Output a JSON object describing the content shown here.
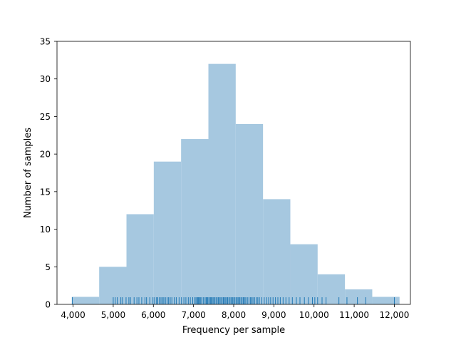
{
  "chart_data": {
    "type": "histogram",
    "title": "",
    "xlabel": "Frequency per sample",
    "ylabel": "Number of samples",
    "xlim": [
      3600,
      12400
    ],
    "ylim": [
      0,
      35
    ],
    "grid": false,
    "bar_color": "#a6c8e0",
    "rug_color": "#1f77b4",
    "x_ticks": [
      {
        "value": 4000,
        "label": "4,000"
      },
      {
        "value": 5000,
        "label": "5,000"
      },
      {
        "value": 6000,
        "label": "6,000"
      },
      {
        "value": 7000,
        "label": "7,000"
      },
      {
        "value": 8000,
        "label": "8,000"
      },
      {
        "value": 9000,
        "label": "9,000"
      },
      {
        "value": 10000,
        "label": "10,000"
      },
      {
        "value": 11000,
        "label": "11,000"
      },
      {
        "value": 12000,
        "label": "12,000"
      }
    ],
    "y_ticks": [
      {
        "value": 0,
        "label": "0"
      },
      {
        "value": 5,
        "label": "5"
      },
      {
        "value": 10,
        "label": "10"
      },
      {
        "value": 15,
        "label": "15"
      },
      {
        "value": 20,
        "label": "20"
      },
      {
        "value": 25,
        "label": "25"
      },
      {
        "value": 30,
        "label": "30"
      },
      {
        "value": 35,
        "label": "35"
      }
    ],
    "bins": [
      {
        "start": 3970,
        "end": 4650,
        "count": 1
      },
      {
        "start": 4650,
        "end": 5330,
        "count": 5
      },
      {
        "start": 5330,
        "end": 6010,
        "count": 12
      },
      {
        "start": 6010,
        "end": 6690,
        "count": 19
      },
      {
        "start": 6690,
        "end": 7370,
        "count": 22
      },
      {
        "start": 7370,
        "end": 8050,
        "count": 32
      },
      {
        "start": 8050,
        "end": 8730,
        "count": 24
      },
      {
        "start": 8730,
        "end": 9410,
        "count": 14
      },
      {
        "start": 9410,
        "end": 10090,
        "count": 8
      },
      {
        "start": 10090,
        "end": 10770,
        "count": 4
      },
      {
        "start": 10770,
        "end": 11450,
        "count": 2
      },
      {
        "start": 11450,
        "end": 12130,
        "count": 1
      }
    ],
    "rug": [
      3980,
      5000,
      5050,
      5100,
      5190,
      5230,
      5320,
      5390,
      5430,
      5520,
      5590,
      5640,
      5710,
      5790,
      5830,
      5910,
      5990,
      6030,
      6080,
      6110,
      6150,
      6190,
      6230,
      6260,
      6300,
      6340,
      6380,
      6420,
      6460,
      6520,
      6570,
      6640,
      6700,
      6760,
      6810,
      6870,
      6920,
      6980,
      7030,
      7060,
      7090,
      7110,
      7130,
      7150,
      7180,
      7210,
      7250,
      7290,
      7320,
      7340,
      7360,
      7390,
      7420,
      7440,
      7470,
      7500,
      7530,
      7560,
      7590,
      7620,
      7650,
      7680,
      7710,
      7740,
      7760,
      7790,
      7820,
      7850,
      7880,
      7910,
      7940,
      7970,
      8000,
      8030,
      8060,
      8090,
      8120,
      8150,
      8180,
      8210,
      8240,
      8270,
      8300,
      8340,
      8380,
      8420,
      8450,
      8480,
      8520,
      8560,
      8600,
      8640,
      8700,
      8760,
      8820,
      8870,
      8920,
      8980,
      9040,
      9100,
      9160,
      9230,
      9300,
      9380,
      9460,
      9560,
      9650,
      9760,
      9860,
      9960,
      10020,
      10090,
      10200,
      10300,
      10620,
      10820,
      11080,
      11290,
      12000
    ]
  }
}
